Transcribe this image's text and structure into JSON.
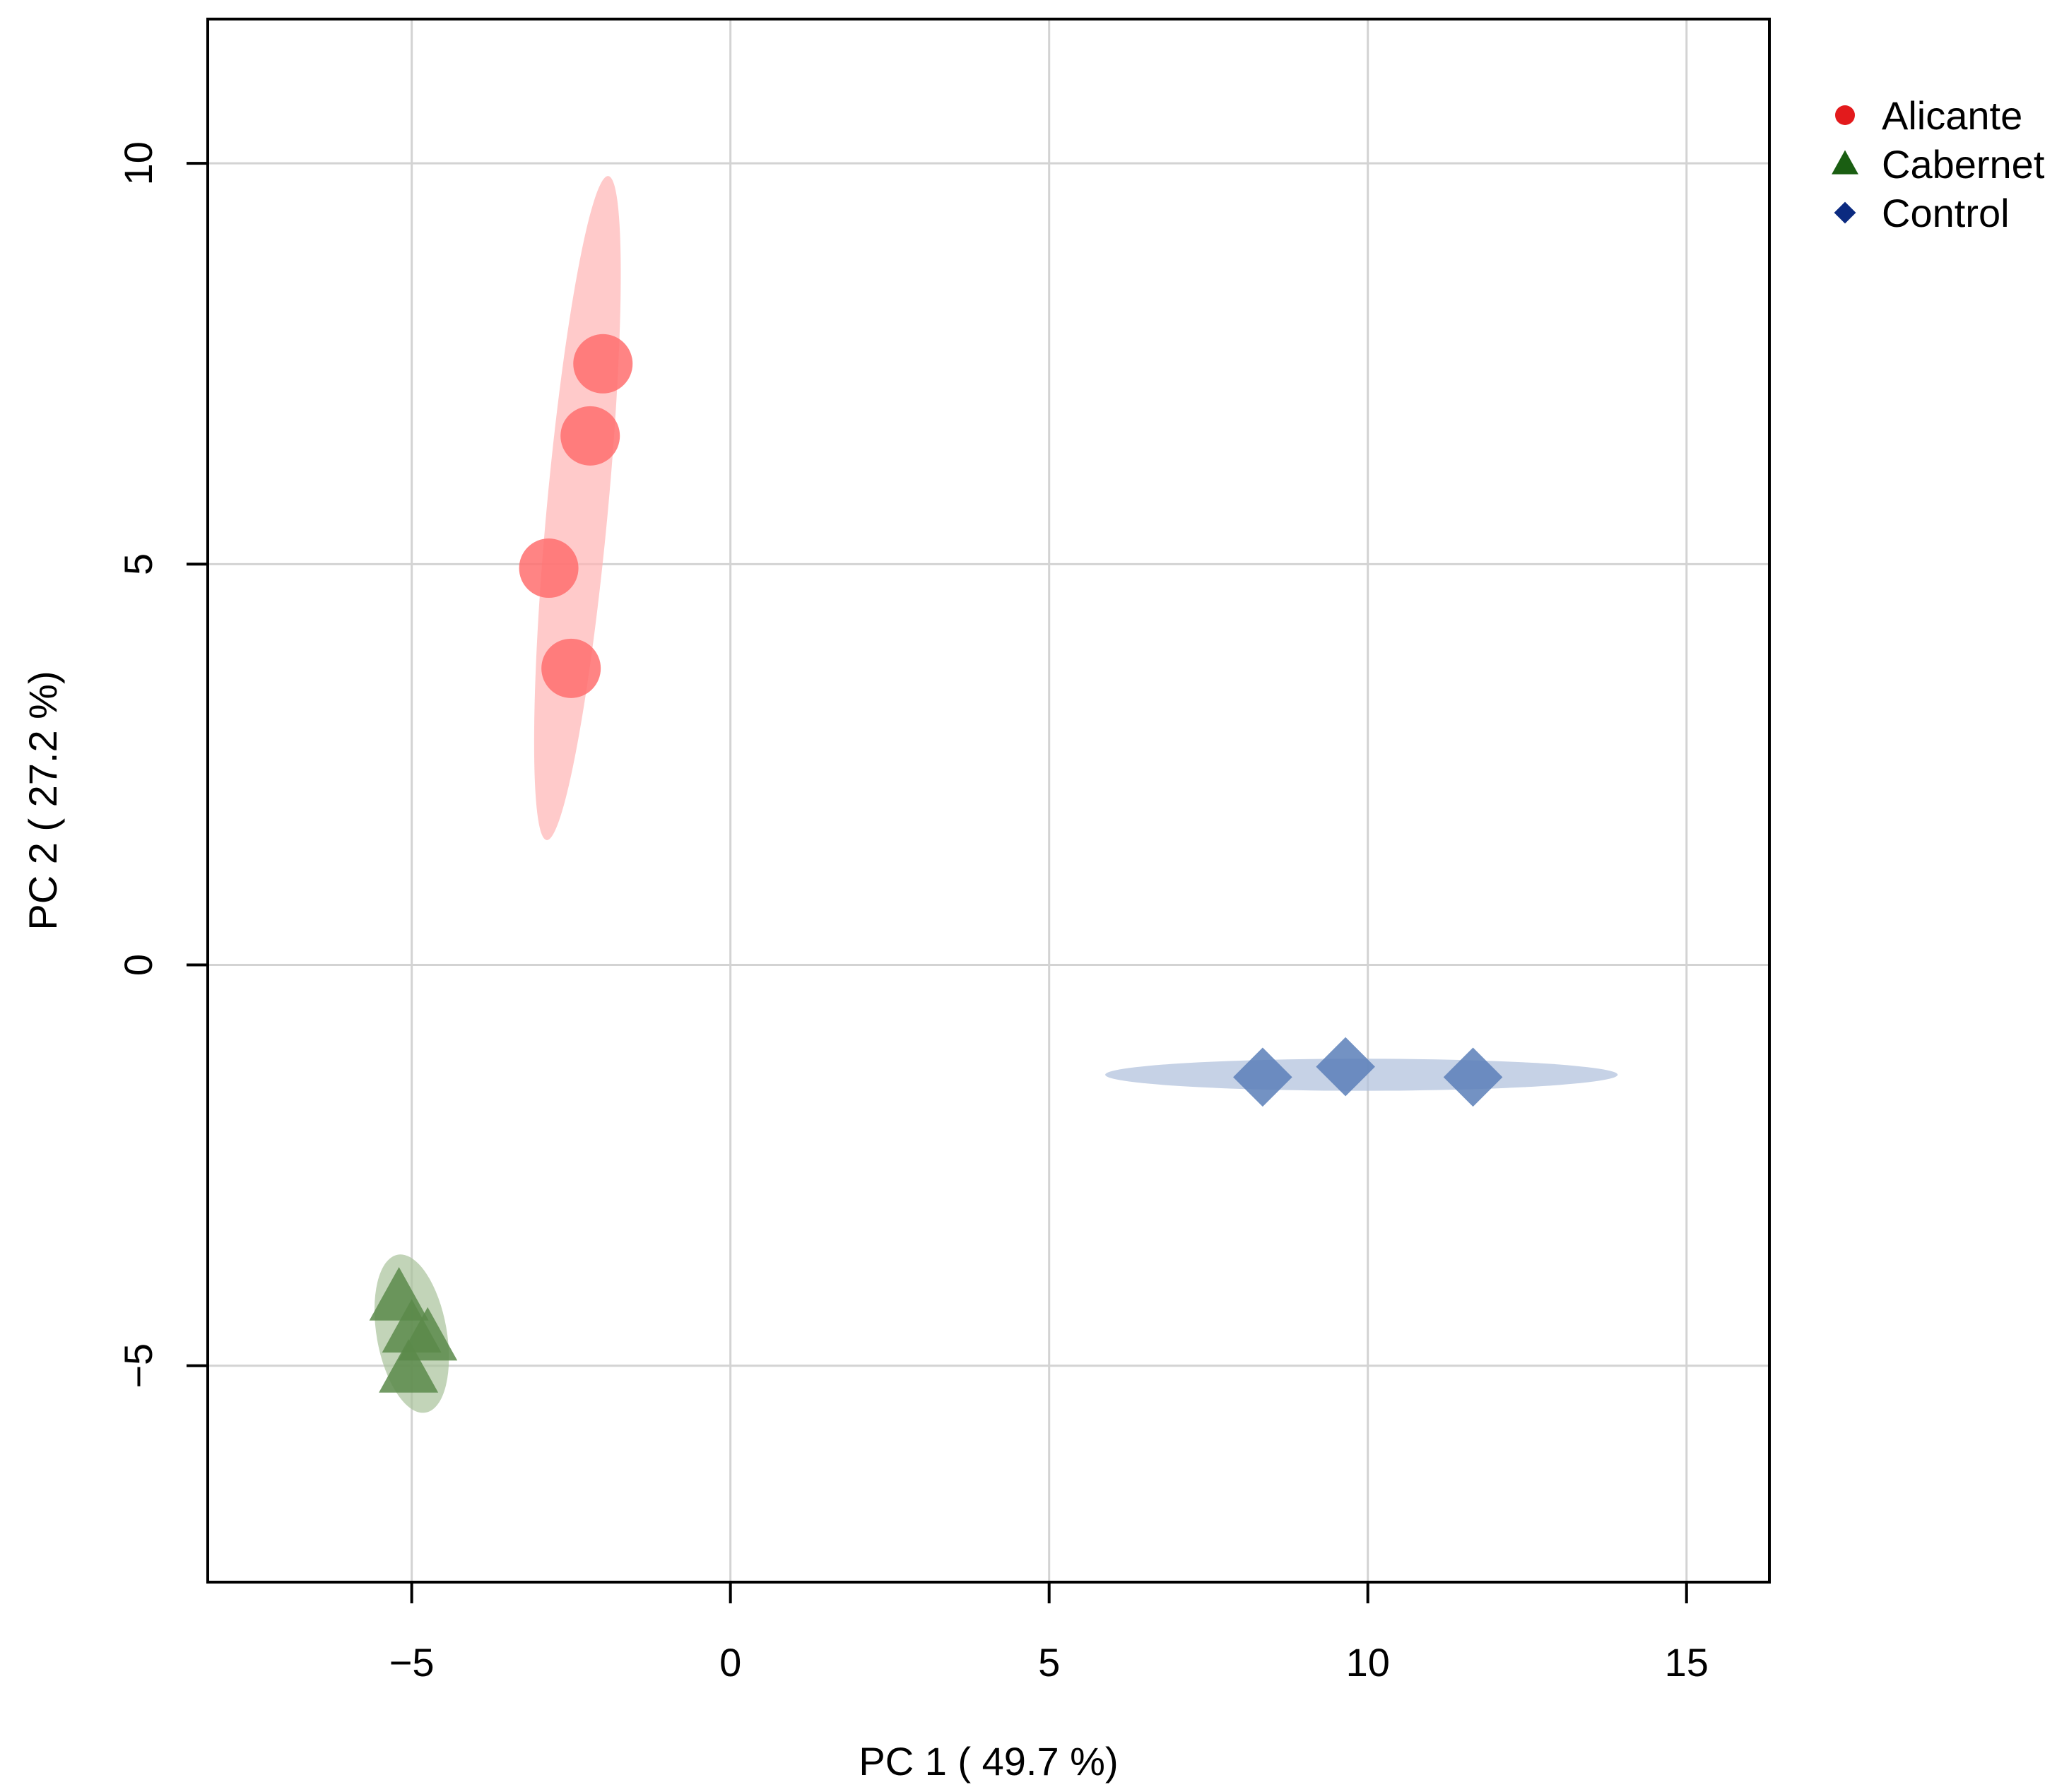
{
  "chart_data": {
    "type": "scatter",
    "title": "",
    "xlabel": "PC 1 ( 49.7 %)",
    "ylabel": "PC 2 ( 27.2 %)",
    "xlim": [
      -8.2,
      16.3
    ],
    "ylim": [
      -7.7,
      11.8
    ],
    "xticks": [
      -5,
      0,
      5,
      10,
      15
    ],
    "yticks": [
      -5,
      0,
      5,
      10
    ],
    "xtick_labels": [
      "−5",
      "0",
      "5",
      "10",
      "15"
    ],
    "ytick_labels": [
      "−5",
      "0",
      "5",
      "10"
    ],
    "grid": true,
    "legend_position": "top-right, outside plot",
    "series": [
      {
        "name": "Alicante",
        "marker": "circle",
        "color": "#e31a1c",
        "point_color": "#ff6e6e",
        "ellipse_color": "#ffb3b3",
        "points": [
          {
            "x": -2.0,
            "y": 7.5
          },
          {
            "x": -2.2,
            "y": 6.6
          },
          {
            "x": -2.85,
            "y": 4.95
          },
          {
            "x": -2.5,
            "y": 3.7
          }
        ],
        "ellipse": {
          "cx": -2.4,
          "cy": 5.7,
          "rx": 0.48,
          "ry": 4.16,
          "angle_deg": 5.3
        }
      },
      {
        "name": "Cabernet",
        "marker": "triangle",
        "color": "#1a5e12",
        "point_color": "#5b8a4a",
        "ellipse_color": "#a8c29a",
        "points": [
          {
            "x": -5.2,
            "y": -4.15
          },
          {
            "x": -5.0,
            "y": -4.55
          },
          {
            "x": -4.75,
            "y": -4.65
          },
          {
            "x": -5.05,
            "y": -5.05
          }
        ],
        "ellipse": {
          "cx": -5.0,
          "cy": -4.6,
          "rx": 0.55,
          "ry": 1.0,
          "angle_deg": -10
        }
      },
      {
        "name": "Control",
        "marker": "diamond",
        "color": "#0b2a80",
        "point_color": "#5a7fb8",
        "ellipse_color": "#aebfdc",
        "points": [
          {
            "x": 8.35,
            "y": -1.4
          },
          {
            "x": 9.65,
            "y": -1.27
          },
          {
            "x": 11.65,
            "y": -1.4
          }
        ],
        "ellipse": {
          "cx": 9.9,
          "cy": -1.37,
          "rx": 4.02,
          "ry": 0.2,
          "angle_deg": 0
        }
      }
    ]
  }
}
